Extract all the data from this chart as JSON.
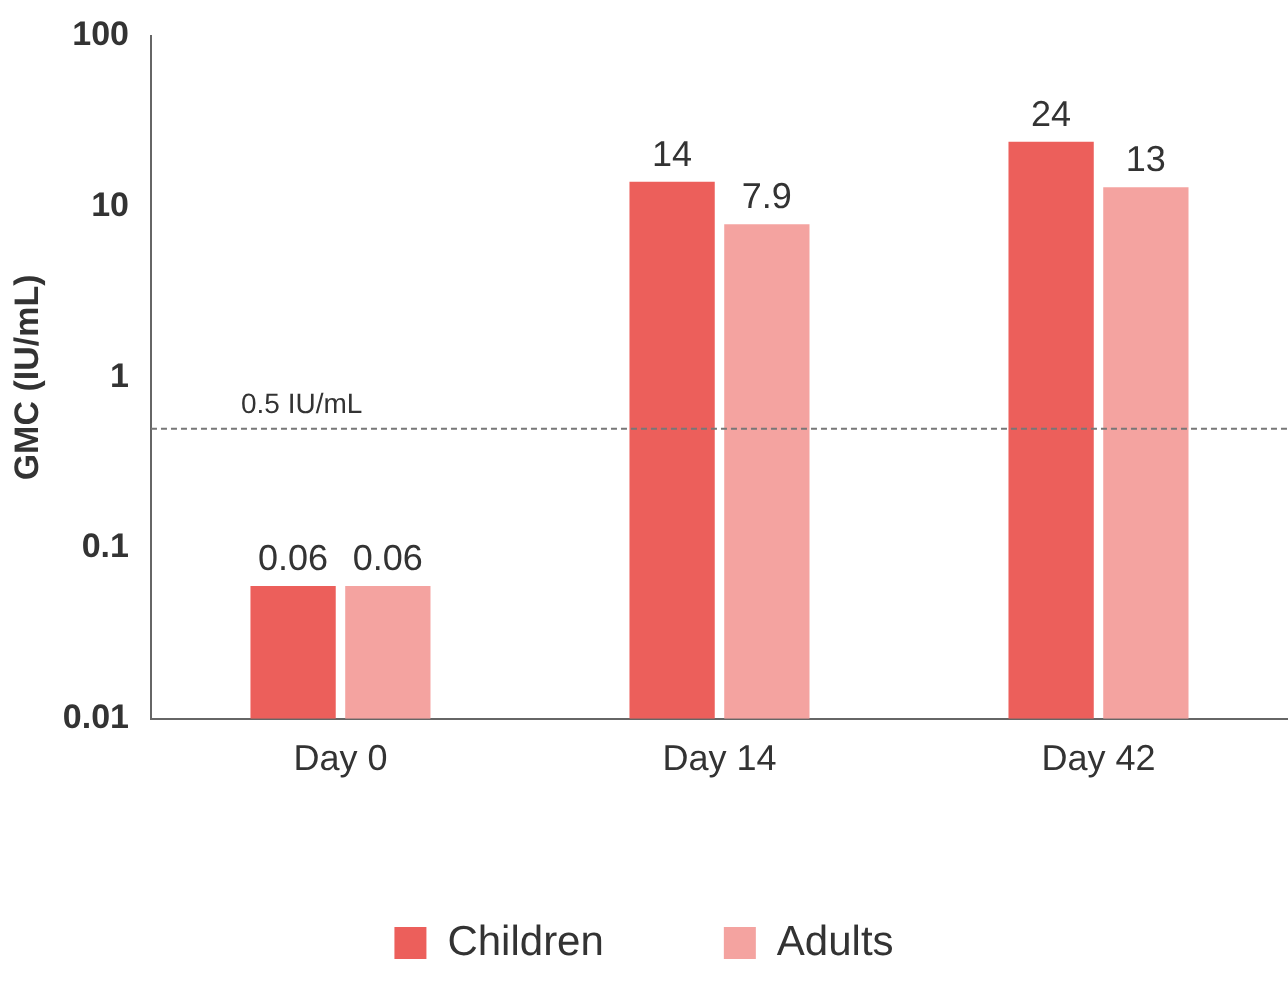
{
  "chart_data": {
    "type": "bar",
    "ylabel": "GMC (IU/mL)",
    "categories": [
      "Day 0",
      "Day 14",
      "Day 42"
    ],
    "series": [
      {
        "name": "Children",
        "color": "#ec5f5b",
        "values": [
          0.06,
          14,
          24
        ]
      },
      {
        "name": "Adults",
        "color": "#f4a3a0",
        "values": [
          0.06,
          7.9,
          13
        ]
      }
    ],
    "log": true,
    "ylim": [
      0.01,
      100
    ],
    "yticks": [
      0.01,
      0.1,
      1,
      10,
      100
    ],
    "grid": false,
    "legend": "bottom",
    "data_labels": true,
    "ref_lines": [
      {
        "axis": "y",
        "value": 0.5,
        "label": "0.5 IU/mL",
        "line_style": "dashed",
        "color": "#777777"
      }
    ]
  }
}
